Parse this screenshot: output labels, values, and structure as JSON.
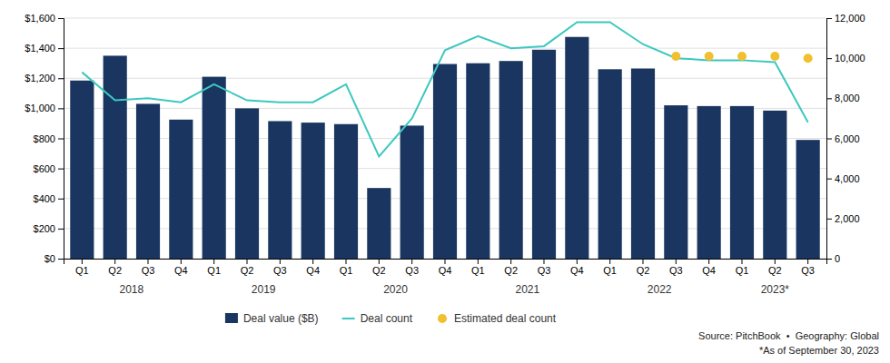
{
  "chart_data": {
    "type": "bar",
    "categories": [
      "Q1",
      "Q2",
      "Q3",
      "Q4",
      "Q1",
      "Q2",
      "Q3",
      "Q4",
      "Q1",
      "Q2",
      "Q3",
      "Q4",
      "Q1",
      "Q2",
      "Q3",
      "Q4",
      "Q1",
      "Q2",
      "Q3",
      "Q4",
      "Q1",
      "Q2",
      "Q3"
    ],
    "category_groups": [
      "2018",
      "2018",
      "2018",
      "2018",
      "2019",
      "2019",
      "2019",
      "2019",
      "2020",
      "2020",
      "2020",
      "2020",
      "2021",
      "2021",
      "2021",
      "2021",
      "2022",
      "2022",
      "2022",
      "2022",
      "2023*",
      "2023*",
      "2023*"
    ],
    "series": [
      {
        "name": "Deal value ($B)",
        "type": "bar",
        "color": "#1a3660",
        "values": [
          1185,
          1350,
          1030,
          925,
          1210,
          1000,
          915,
          905,
          895,
          470,
          885,
          1295,
          1300,
          1315,
          1390,
          1475,
          1260,
          1265,
          1020,
          1015,
          1015,
          985,
          790
        ]
      },
      {
        "name": "Deal count",
        "type": "line",
        "color": "#3cc8c0",
        "axis": "y2",
        "values": [
          9300,
          7900,
          8000,
          7800,
          8700,
          7900,
          7800,
          7800,
          8700,
          5100,
          7000,
          10400,
          11100,
          10500,
          10600,
          11800,
          11800,
          10700,
          10000,
          9900,
          9900,
          9800,
          6800
        ]
      },
      {
        "name": "Estimated deal count",
        "type": "scatter",
        "marker": "circle",
        "color": "#f0c030",
        "axis": "y2",
        "values": [
          null,
          null,
          null,
          null,
          null,
          null,
          null,
          null,
          null,
          null,
          null,
          null,
          null,
          null,
          null,
          null,
          null,
          null,
          10100,
          10100,
          10100,
          10100,
          10000
        ]
      }
    ],
    "ylim": [
      0,
      1600
    ],
    "yticks": [
      {
        "value": 0,
        "label": "$0"
      },
      {
        "value": 200,
        "label": "$200"
      },
      {
        "value": 400,
        "label": "$400"
      },
      {
        "value": 600,
        "label": "$600"
      },
      {
        "value": 800,
        "label": "$800"
      },
      {
        "value": 1000,
        "label": "$1,000"
      },
      {
        "value": 1200,
        "label": "$1,200"
      },
      {
        "value": 1400,
        "label": "$1,400"
      },
      {
        "value": 1600,
        "label": "$1,600"
      }
    ],
    "y2lim": [
      0,
      12000
    ],
    "y2ticks": [
      0,
      {
        "value": 2000,
        "label": "2,000"
      },
      {
        "value": 4000,
        "label": "4,000"
      },
      {
        "value": 6000,
        "label": "6,000"
      },
      {
        "value": 8000,
        "label": "8,000"
      },
      {
        "value": 10000,
        "label": "10,000"
      },
      {
        "value": 12000,
        "label": "12,000"
      }
    ],
    "grid": true,
    "legend": "bottom",
    "annotations": [
      "Source: PitchBook  •  Geography: Global",
      "*As of September 30, 2023"
    ]
  }
}
